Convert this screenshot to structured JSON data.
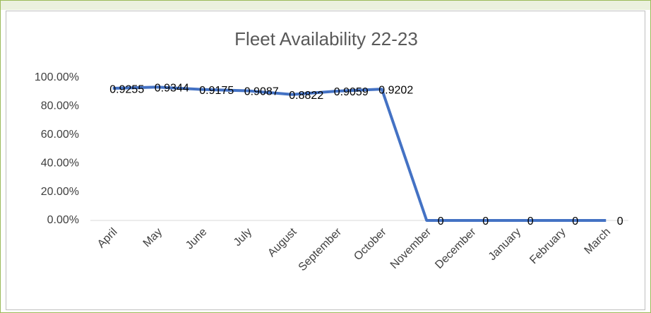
{
  "chart_data": {
    "type": "line",
    "title": "Fleet Availability 22-23",
    "categories": [
      "April",
      "May",
      "June",
      "July",
      "August",
      "September",
      "October",
      "November",
      "December",
      "January",
      "February",
      "March"
    ],
    "series": [
      {
        "name": "Fleet Availability",
        "color": "#4472c4",
        "values": [
          0.9255,
          0.9344,
          0.9175,
          0.9087,
          0.8822,
          0.9059,
          0.9202,
          0,
          0,
          0,
          0,
          0
        ]
      }
    ],
    "ylim": [
      0,
      1
    ],
    "yticks": [
      {
        "value": 0,
        "label": "0.00%"
      },
      {
        "value": 0.2,
        "label": "20.00%"
      },
      {
        "value": 0.4,
        "label": "40.00%"
      },
      {
        "value": 0.6,
        "label": "60.00%"
      },
      {
        "value": 0.8,
        "label": "80.00%"
      },
      {
        "value": 1,
        "label": "100.00%"
      }
    ],
    "grid": false
  }
}
